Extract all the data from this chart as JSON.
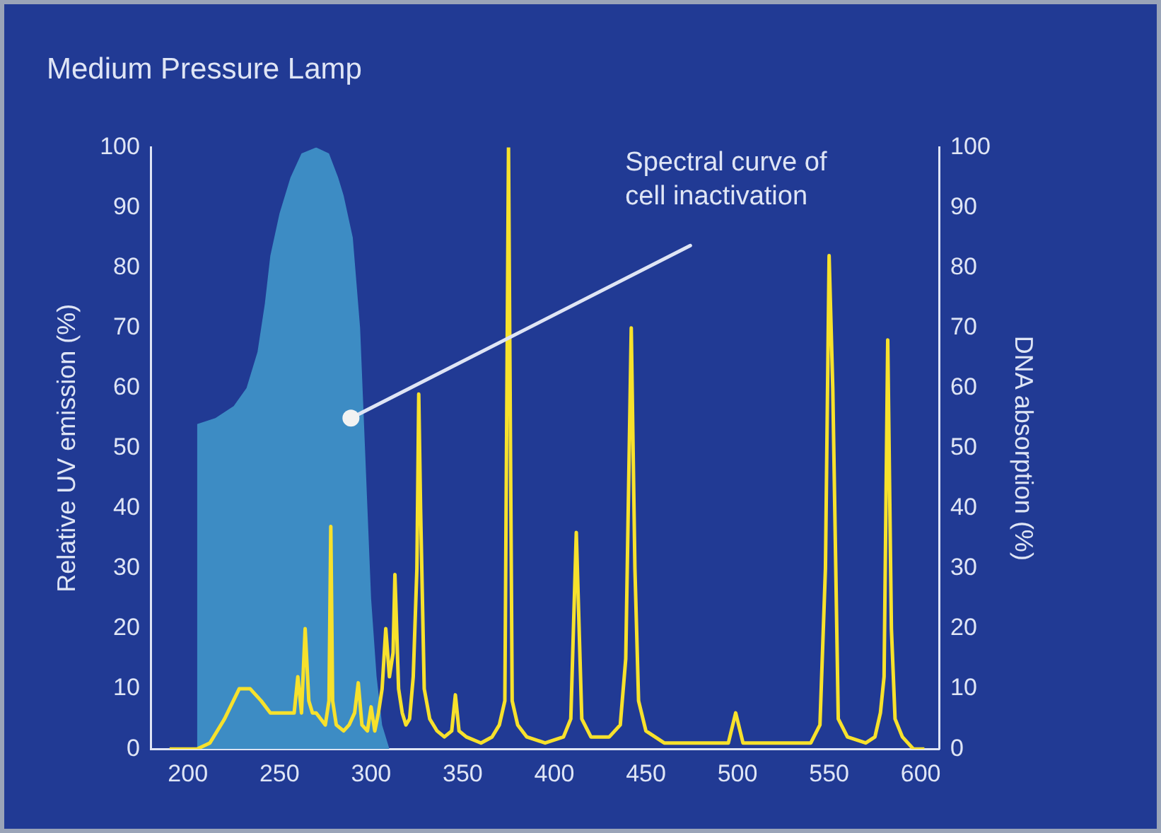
{
  "chart_data": {
    "type": "line",
    "title": "Medium Pressure Lamp",
    "xlabel": null,
    "ylabel": "Relative UV emission (%)",
    "y2label": "DNA absorption (%)",
    "xlim": [
      180,
      610
    ],
    "xticks": [
      200,
      250,
      300,
      350,
      400,
      450,
      500,
      550,
      600
    ],
    "ylim": [
      0,
      100
    ],
    "yticks": [
      0,
      10,
      20,
      30,
      40,
      50,
      60,
      70,
      80,
      90,
      100
    ],
    "y2lim": [
      0,
      100
    ],
    "y2ticks": [
      0,
      10,
      20,
      30,
      40,
      50,
      60,
      70,
      80,
      90,
      100
    ],
    "grid": false,
    "legend": false,
    "marker": "none",
    "line_style": "solid",
    "annotations": [
      {
        "text": "Spectral curve of cell inactivation",
        "x": 289,
        "y": 55
      }
    ],
    "series": [
      {
        "type": "area",
        "axis": "y2",
        "color": "#3d8cc4",
        "x": [
          205,
          205,
          215,
          225,
          232,
          238,
          242,
          245,
          250,
          256,
          262,
          270,
          277,
          282,
          285,
          290,
          294,
          296,
          298,
          300,
          303,
          306,
          310
        ],
        "values": [
          0,
          54,
          55,
          57,
          60,
          66,
          74,
          82,
          89,
          95,
          99,
          100,
          99,
          95,
          92,
          85,
          70,
          55,
          40,
          25,
          12,
          4,
          0
        ]
      },
      {
        "color": "#f7e12c",
        "x": [
          190,
          205,
          212,
          220,
          228,
          234,
          240,
          245,
          250,
          255,
          258,
          260,
          262,
          264,
          266,
          268,
          270,
          275,
          277,
          278,
          279,
          281,
          285,
          288,
          291,
          293,
          295,
          298,
          300,
          302,
          304,
          306,
          308,
          310,
          312,
          313,
          315,
          317,
          319,
          321,
          323,
          325,
          326,
          327,
          329,
          332,
          336,
          340,
          344,
          346,
          348,
          352,
          360,
          366,
          370,
          373,
          375,
          377,
          380,
          385,
          395,
          405,
          409,
          412,
          415,
          420,
          430,
          436,
          439,
          442,
          444,
          446,
          450,
          460,
          480,
          495,
          499,
          503,
          510,
          530,
          540,
          545,
          548,
          550,
          552,
          555,
          560,
          570,
          575,
          578,
          580,
          582,
          584,
          586,
          590,
          596,
          602
        ],
        "values": [
          0,
          0,
          1,
          5,
          10,
          10,
          8,
          6,
          6,
          6,
          6,
          12,
          6,
          20,
          8,
          6,
          6,
          4,
          8,
          37,
          8,
          4,
          3,
          4,
          6,
          11,
          4,
          3,
          7,
          3,
          6,
          10,
          20,
          12,
          16,
          29,
          10,
          6,
          4,
          5,
          12,
          30,
          59,
          40,
          10,
          5,
          3,
          2,
          3,
          9,
          3,
          2,
          1,
          2,
          4,
          8,
          100,
          8,
          4,
          2,
          1,
          2,
          5,
          36,
          5,
          2,
          2,
          4,
          15,
          70,
          30,
          8,
          3,
          1,
          1,
          1,
          6,
          1,
          1,
          1,
          1,
          4,
          30,
          82,
          60,
          5,
          2,
          1,
          2,
          6,
          12,
          68,
          20,
          5,
          2,
          0,
          0
        ]
      }
    ]
  }
}
